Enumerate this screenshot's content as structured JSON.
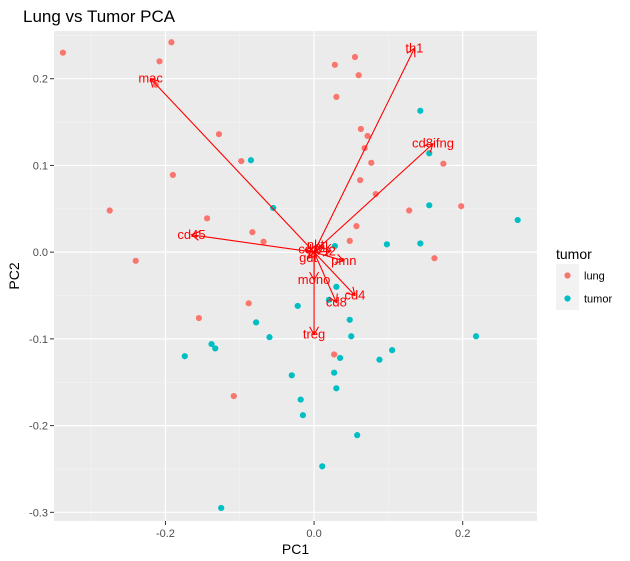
{
  "chart_data": {
    "type": "scatter",
    "title": "Lung vs Tumor PCA",
    "xlabel": "PC1",
    "ylabel": "PC2",
    "xlim": [
      -0.35,
      0.3
    ],
    "ylim": [
      -0.31,
      0.255
    ],
    "x_ticks": [
      -0.2,
      0.0,
      0.2
    ],
    "y_ticks": [
      -0.3,
      -0.2,
      -0.1,
      0.0,
      0.1,
      0.2
    ],
    "x_tick_labels": [
      "-0.2",
      "0.0",
      "0.2"
    ],
    "y_tick_labels": [
      "-0.3",
      "-0.2",
      "-0.1",
      "0.0",
      "0.1",
      "0.2"
    ],
    "grid": true,
    "legend": {
      "title": "tumor",
      "position": "right"
    },
    "series": [
      {
        "name": "lung",
        "color": "#F8766D",
        "points": [
          [
            -0.338,
            0.23
          ],
          [
            -0.192,
            0.242
          ],
          [
            -0.208,
            0.22
          ],
          [
            -0.213,
            0.193
          ],
          [
            -0.19,
            0.089
          ],
          [
            -0.128,
            0.136
          ],
          [
            -0.098,
            0.105
          ],
          [
            -0.275,
            0.048
          ],
          [
            -0.144,
            0.039
          ],
          [
            -0.24,
            -0.01
          ],
          [
            -0.083,
            0.023
          ],
          [
            -0.068,
            0.012
          ],
          [
            -0.155,
            -0.076
          ],
          [
            -0.088,
            -0.059
          ],
          [
            -0.108,
            -0.166
          ],
          [
            0.028,
            0.216
          ],
          [
            0.055,
            0.225
          ],
          [
            0.06,
            0.204
          ],
          [
            0.03,
            0.179
          ],
          [
            0.063,
            0.142
          ],
          [
            0.072,
            0.134
          ],
          [
            0.068,
            0.12
          ],
          [
            0.062,
            0.083
          ],
          [
            0.077,
            0.103
          ],
          [
            0.083,
            0.067
          ],
          [
            0.057,
            0.03
          ],
          [
            0.048,
            0.013
          ],
          [
            0.027,
            -0.118
          ],
          [
            0.128,
            0.048
          ],
          [
            0.174,
            0.102
          ],
          [
            0.198,
            0.053
          ],
          [
            0.162,
            -0.007
          ]
        ]
      },
      {
        "name": "tumor",
        "color": "#00BFC4",
        "points": [
          [
            -0.085,
            0.106
          ],
          [
            -0.055,
            0.051
          ],
          [
            -0.174,
            -0.12
          ],
          [
            -0.138,
            -0.106
          ],
          [
            -0.133,
            -0.111
          ],
          [
            -0.078,
            -0.081
          ],
          [
            -0.06,
            -0.098
          ],
          [
            -0.022,
            -0.062
          ],
          [
            -0.03,
            -0.142
          ],
          [
            -0.018,
            -0.17
          ],
          [
            -0.015,
            -0.188
          ],
          [
            -0.125,
            -0.295
          ],
          [
            0.028,
            0.007
          ],
          [
            0.02,
            -0.055
          ],
          [
            0.03,
            -0.04
          ],
          [
            0.048,
            -0.078
          ],
          [
            0.05,
            -0.097
          ],
          [
            0.035,
            -0.122
          ],
          [
            0.027,
            -0.139
          ],
          [
            0.03,
            -0.157
          ],
          [
            0.058,
            -0.211
          ],
          [
            0.011,
            -0.247
          ],
          [
            0.088,
            -0.124
          ],
          [
            0.105,
            -0.113
          ],
          [
            0.098,
            0.009
          ],
          [
            0.143,
            0.163
          ],
          [
            0.155,
            0.114
          ],
          [
            0.155,
            0.054
          ],
          [
            0.143,
            0.01
          ],
          [
            0.218,
            -0.097
          ],
          [
            0.274,
            0.037
          ]
        ]
      }
    ],
    "loadings": {
      "color": "#FF0000",
      "origin": [
        0,
        0
      ],
      "vectors": [
        {
          "label": "th1",
          "x": 0.135,
          "y": 0.235
        },
        {
          "label": "mac",
          "x": -0.22,
          "y": 0.2
        },
        {
          "label": "cd8ifng",
          "x": 0.16,
          "y": 0.125
        },
        {
          "label": "cd45",
          "x": -0.165,
          "y": 0.02
        },
        {
          "label": "treg",
          "x": 0.0,
          "y": -0.095
        },
        {
          "label": "cd4",
          "x": 0.055,
          "y": -0.05
        },
        {
          "label": "cd8",
          "x": 0.03,
          "y": -0.058
        },
        {
          "label": "mono",
          "x": 0.0,
          "y": -0.032
        },
        {
          "label": "pmn",
          "x": 0.04,
          "y": -0.01
        },
        {
          "label": "gdt",
          "x": -0.008,
          "y": -0.007
        },
        {
          "label": "cd",
          "x": -0.012,
          "y": 0.003
        },
        {
          "label": "nkt",
          "x": 0.002,
          "y": 0.008
        },
        {
          "label": "mk",
          "x": 0.012,
          "y": 0.006
        },
        {
          "label": "t2",
          "x": 0.022,
          "y": 0.001
        }
      ]
    }
  }
}
